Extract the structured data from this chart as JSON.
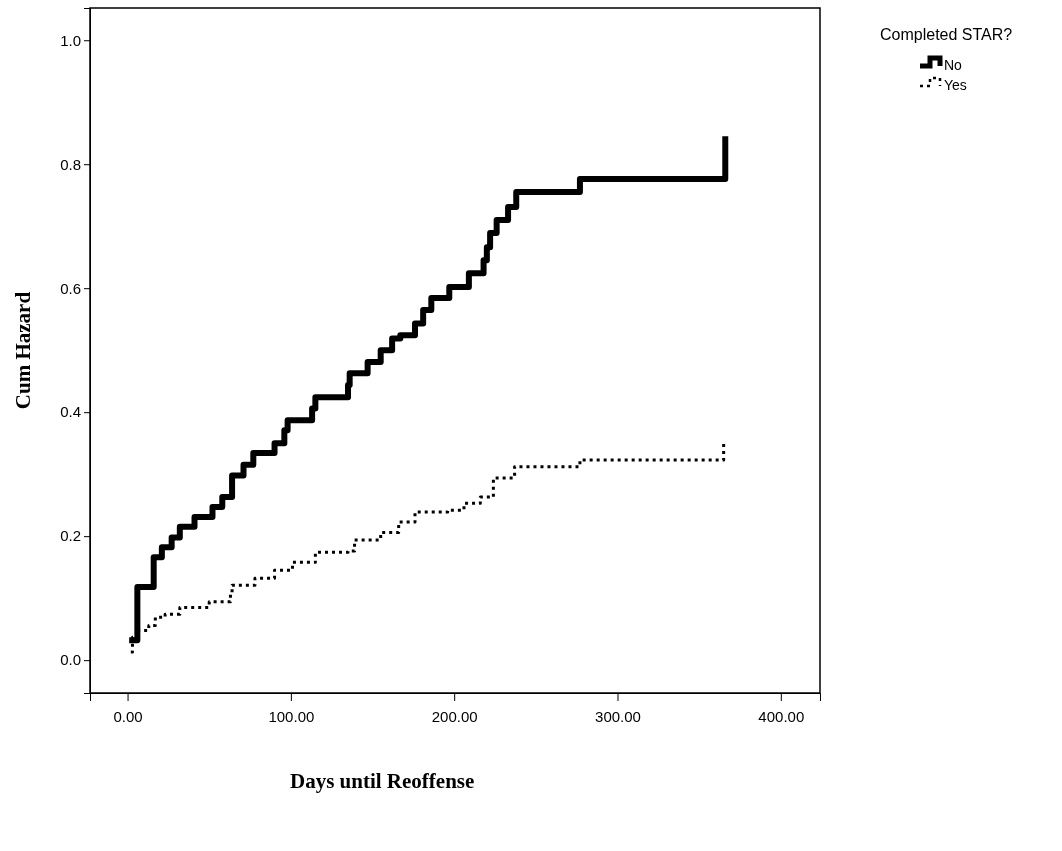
{
  "chart_data": {
    "type": "step",
    "xlabel": "Days until Reoffense",
    "ylabel": "Cum Hazard",
    "legend_title": "Completed STAR?",
    "legend": "top right",
    "grid": false,
    "marker": "none",
    "xlim": [
      -23,
      424
    ],
    "ylim": [
      -0.053,
      1.052
    ],
    "xticks": [
      {
        "value": 0,
        "label": "0.00"
      },
      {
        "value": 100,
        "label": "100.00"
      },
      {
        "value": 200,
        "label": "200.00"
      },
      {
        "value": 300,
        "label": "300.00"
      },
      {
        "value": 400,
        "label": "400.00"
      }
    ],
    "yticks": [
      {
        "value": 0,
        "label": "0.0"
      },
      {
        "value": 0.2,
        "label": "0.2"
      },
      {
        "value": 0.4,
        "label": "0.4"
      },
      {
        "value": 0.6,
        "label": "0.6"
      },
      {
        "value": 0.8,
        "label": "0.8"
      },
      {
        "value": 1,
        "label": "1.0"
      }
    ],
    "series": [
      {
        "name": "No",
        "color": "#000000",
        "line_style": "solid",
        "x": [
          1,
          6,
          16,
          21,
          27,
          32,
          41,
          52,
          58,
          64,
          71,
          77,
          90,
          96,
          98,
          113,
          115,
          135,
          136,
          147,
          155,
          162,
          167,
          176,
          181,
          186,
          190,
          197,
          209,
          218,
          220,
          222,
          226,
          233,
          238,
          277,
          366
        ],
        "values": [
          0.032,
          0.118,
          0.166,
          0.182,
          0.198,
          0.215,
          0.231,
          0.247,
          0.263,
          0.298,
          0.315,
          0.334,
          0.35,
          0.371,
          0.387,
          0.406,
          0.424,
          0.444,
          0.463,
          0.481,
          0.5,
          0.519,
          0.524,
          0.543,
          0.565,
          0.584,
          0.584,
          0.602,
          0.624,
          0.645,
          0.666,
          0.689,
          0.71,
          0.731,
          0.755,
          0.776,
          0.845
        ]
      },
      {
        "name": "Yes",
        "color": "#000000",
        "line_style": "dotted",
        "x": [
          2,
          3,
          6,
          13,
          17,
          23,
          32,
          50,
          63,
          64,
          78,
          90,
          101,
          115,
          135,
          139,
          155,
          166,
          176,
          196,
          206,
          216,
          224,
          237,
          277,
          365
        ],
        "values": [
          0.013,
          0.037,
          0.048,
          0.056,
          0.069,
          0.074,
          0.085,
          0.094,
          0.108,
          0.121,
          0.132,
          0.145,
          0.158,
          0.174,
          0.176,
          0.194,
          0.206,
          0.223,
          0.239,
          0.242,
          0.253,
          0.263,
          0.294,
          0.312,
          0.323,
          0.35
        ]
      }
    ]
  }
}
